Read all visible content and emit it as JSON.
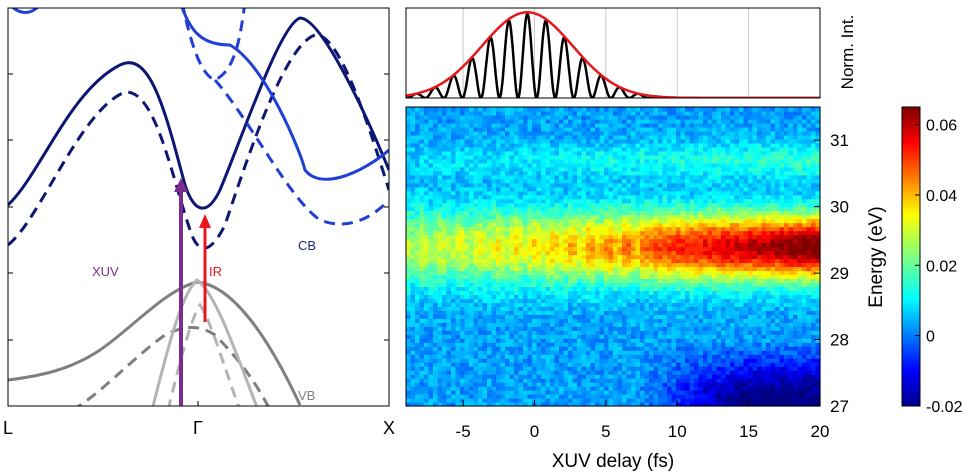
{
  "chart_data": [
    {
      "panel": "band-structure",
      "type": "line",
      "x_ticks": [
        "L",
        "Γ",
        "X"
      ],
      "annotations": [
        {
          "text": "XUV",
          "color": "#7b2d8e"
        },
        {
          "text": "IR",
          "color": "#e8161b"
        },
        {
          "text": "CB",
          "color": "#1a237e"
        },
        {
          "text": "VB",
          "color": "#808080"
        }
      ],
      "series_colors": {
        "cb_dark": "#0d1673",
        "cb_blue": "#1f3fd6",
        "vb_dark": "#7f7f7f",
        "vb_light": "#b4b4b4"
      },
      "grid": false
    },
    {
      "panel": "pulse-intensity",
      "type": "line",
      "ylabel": "Norm. Int.",
      "xlim": [
        -9,
        20
      ],
      "ylim": [
        0,
        1.05
      ],
      "gridlines_x": [
        -5,
        0,
        5,
        10,
        15
      ],
      "envelope": {
        "color": "#e8161b",
        "center_fs": -0.5,
        "fwhm_fs": 7.5
      },
      "oscillation": {
        "color": "#000000",
        "period_fs": 1.3,
        "peaks_fs": [
          -4.4,
          -3.1,
          -1.8,
          -0.5,
          0.8,
          2.1,
          3.4,
          4.7
        ]
      }
    },
    {
      "panel": "transient-absorption",
      "type": "heatmap",
      "xlabel": "XUV delay (fs)",
      "ylabel": "Energy (eV)",
      "xlim": [
        -9,
        20
      ],
      "ylim": [
        27,
        31.5
      ],
      "x_ticks": [
        -5,
        0,
        5,
        10,
        15,
        20
      ],
      "y_ticks": [
        27,
        28,
        29,
        30,
        31
      ],
      "colorbar": {
        "range": [
          -0.02,
          0.065
        ],
        "ticks": [
          "0.06",
          "0.04",
          "0.02",
          "0",
          "-0.02"
        ],
        "tick_values": [
          0.06,
          0.04,
          0.02,
          0,
          -0.02
        ],
        "colormap": "jet"
      },
      "feature_band": {
        "energy_eV": 29.4,
        "signal_at_start": 0.025,
        "signal_at_end": 0.065,
        "oscillation_period_fs": 1.3
      },
      "negative_region": {
        "energy_range_eV": [
          27,
          28
        ],
        "delay_range_fs": [
          10,
          20
        ],
        "signal": -0.02
      }
    }
  ]
}
